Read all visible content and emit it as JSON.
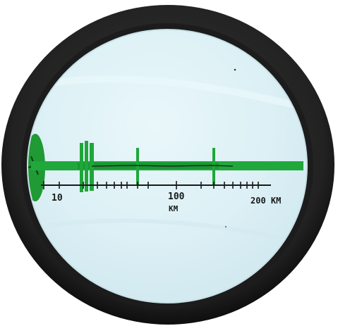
{
  "scale_labels": {
    "ten": "10",
    "hundred": "100",
    "km_caption": "KM",
    "two_hundred": "200 KM"
  },
  "colors": {
    "ring_outer": "#1b1b1b",
    "ring_inner": "#2c2c2c",
    "paper": "#dff2f6",
    "marker_green": "#1fa63a",
    "ink": "#1a1a1a"
  }
}
